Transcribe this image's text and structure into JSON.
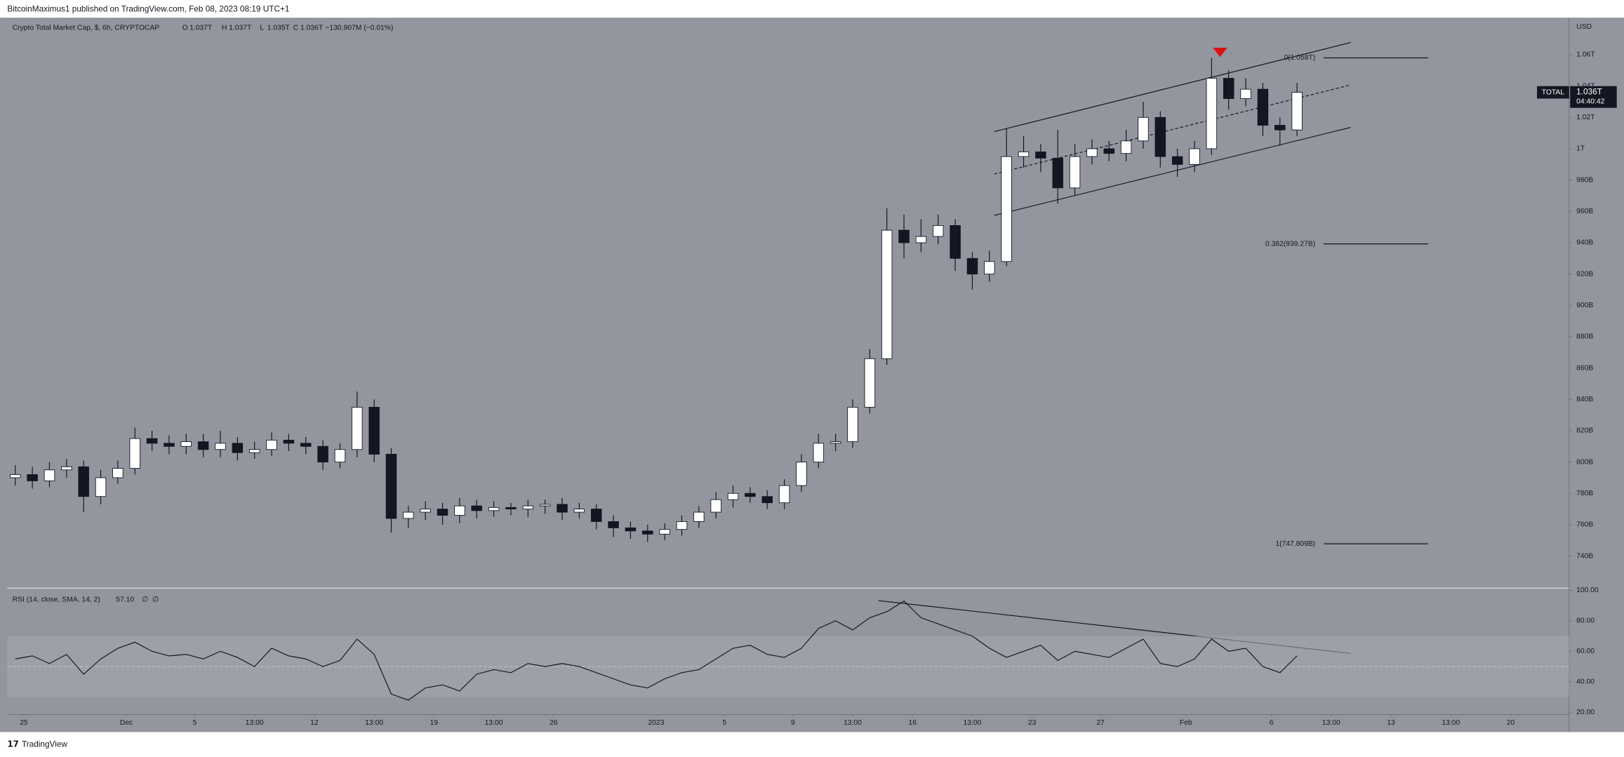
{
  "header": {
    "publisher": "BitcoinMaximus1 published on TradingView.com, Feb 08, 2023 08:19 UTC+1",
    "footer": "TradingView"
  },
  "chart_data": [
    {
      "type": "candlestick",
      "title": "Crypto Total Market Cap, $, 6h, CRYPTOCAP",
      "ohlc_letters": [
        "O",
        "H",
        "L",
        "C"
      ],
      "ohlc_values": [
        {
          "value": 1037,
          "label": "1.037T"
        },
        {
          "value": 1037,
          "label": "1.037T"
        },
        {
          "value": 1035,
          "label": "1.035T"
        },
        {
          "value": 1036,
          "label": "1.036T"
        }
      ],
      "change": "−130.907M (−0.01%)",
      "axis_unit": "USD",
      "symbol": "TOTAL",
      "last_price": {
        "value": 1036,
        "label": "1.036T"
      },
      "countdown": "04:40:42",
      "up_color": "#ffffff",
      "down_color": "#131722",
      "wick_color": "#131722",
      "x": [
        -0.5,
        0.5,
        1.5,
        2.5,
        3.5,
        4.5,
        5.5,
        6.5,
        7.5,
        8.5,
        9.5,
        10.5,
        11.5,
        12.5,
        13.5,
        14.5,
        15.5,
        16.5,
        17.5,
        18.5,
        19.5,
        20.5,
        21.5,
        22.5,
        23.5,
        24.5,
        25.5,
        26.5,
        27.5,
        28.5,
        29.5,
        30.5,
        31.5,
        32.5,
        33.5,
        34.5,
        35.5,
        36.5,
        37.5,
        38.5,
        39.5,
        40.5,
        41.5,
        42.5,
        43.5,
        44.5,
        45.5,
        46.5,
        47.5,
        48.5,
        49.5,
        50.5,
        51.5,
        52.5,
        53.5,
        54.5,
        55.5,
        56.5,
        57.5,
        58.5,
        59.5,
        60.5,
        61.5,
        62.5,
        63.5,
        64.5,
        65.5,
        66.5,
        67.5,
        68.5,
        69.5,
        70.5,
        71.5,
        72.5,
        73.5,
        74.5
      ],
      "open": [
        790,
        792,
        788,
        795,
        797,
        778,
        790,
        796,
        815,
        812,
        810,
        813,
        808,
        812,
        806,
        808,
        814,
        812,
        810,
        800,
        808,
        835,
        805,
        764,
        768,
        770,
        766,
        772,
        769,
        771,
        770,
        772,
        773,
        768,
        770,
        762,
        758,
        756,
        754,
        757,
        762,
        768,
        776,
        780,
        778,
        774,
        785,
        800,
        812,
        813,
        835,
        866,
        948,
        940,
        944,
        951,
        930,
        920,
        928,
        995,
        998,
        994,
        975,
        995,
        1000,
        997,
        1005,
        1020,
        995,
        990,
        1000,
        1045,
        1032,
        1038,
        1015,
        1012
      ],
      "high": [
        798,
        797,
        800,
        802,
        801,
        795,
        801,
        822,
        820,
        817,
        818,
        818,
        820,
        816,
        813,
        819,
        818,
        816,
        814,
        812,
        845,
        840,
        809,
        772,
        775,
        774,
        777,
        776,
        775,
        774,
        776,
        776,
        777,
        774,
        773,
        766,
        762,
        760,
        761,
        766,
        772,
        781,
        785,
        784,
        782,
        789,
        805,
        818,
        818,
        840,
        872,
        962,
        958,
        955,
        958,
        955,
        934,
        935,
        1013,
        1008,
        1003,
        1012,
        1003,
        1006,
        1005,
        1012,
        1030,
        1024,
        1000,
        1005,
        1058,
        1050,
        1045,
        1042,
        1020,
        1042
      ],
      "low": [
        785,
        783,
        784,
        790,
        768,
        773,
        786,
        792,
        807,
        805,
        805,
        803,
        803,
        801,
        802,
        804,
        807,
        805,
        795,
        796,
        803,
        800,
        755,
        758,
        763,
        760,
        761,
        764,
        765,
        766,
        765,
        767,
        763,
        764,
        757,
        752,
        751,
        749,
        750,
        753,
        758,
        764,
        771,
        774,
        770,
        770,
        781,
        796,
        807,
        809,
        831,
        862,
        930,
        934,
        939,
        922,
        910,
        915,
        925,
        988,
        985,
        965,
        970,
        990,
        992,
        992,
        1000,
        988,
        982,
        985,
        996,
        1025,
        1027,
        1008,
        1002,
        1008
      ],
      "close": [
        792,
        788,
        795,
        797,
        778,
        790,
        796,
        815,
        812,
        810,
        813,
        808,
        812,
        806,
        808,
        814,
        812,
        810,
        800,
        808,
        835,
        805,
        764,
        768,
        770,
        766,
        772,
        769,
        771,
        770,
        772,
        773,
        768,
        770,
        762,
        758,
        756,
        754,
        757,
        762,
        768,
        776,
        780,
        778,
        774,
        785,
        800,
        812,
        813,
        835,
        866,
        948,
        940,
        944,
        951,
        930,
        920,
        928,
        995,
        998,
        994,
        975,
        995,
        1000,
        997,
        1005,
        1020,
        995,
        990,
        1000,
        1045,
        1032,
        1038,
        1015,
        1012,
        1036
      ],
      "xlim": [
        -0.97,
        90.42
      ],
      "ylim": [
        719.5,
        1083
      ],
      "yticks": [
        {
          "value": 740,
          "label": "740B"
        },
        {
          "value": 760,
          "label": "760B"
        },
        {
          "value": 780,
          "label": "780B"
        },
        {
          "value": 800,
          "label": "800B"
        },
        {
          "value": 820,
          "label": "820B"
        },
        {
          "value": 840,
          "label": "840B"
        },
        {
          "value": 860,
          "label": "860B"
        },
        {
          "value": 880,
          "label": "880B"
        },
        {
          "value": 900,
          "label": "900B"
        },
        {
          "value": 920,
          "label": "920B"
        },
        {
          "value": 940,
          "label": "940B"
        },
        {
          "value": 960,
          "label": "960B"
        },
        {
          "value": 980,
          "label": "980B"
        },
        {
          "value": 1000,
          "label": "1T"
        },
        {
          "value": 1020,
          "label": "1.02T"
        },
        {
          "value": 1040,
          "label": "1.04T"
        },
        {
          "value": 1060,
          "label": "1.06T"
        }
      ],
      "xticks": [
        {
          "value": 0,
          "label": "25"
        },
        {
          "value": 6,
          "label": "Dec"
        },
        {
          "value": 10,
          "label": "5"
        },
        {
          "value": 13.5,
          "label": "13:00"
        },
        {
          "value": 17,
          "label": "12"
        },
        {
          "value": 20.5,
          "label": "13:00"
        },
        {
          "value": 24,
          "label": "19"
        },
        {
          "value": 27.5,
          "label": "13:00"
        },
        {
          "value": 31,
          "label": "26"
        },
        {
          "value": 37,
          "label": "2023"
        },
        {
          "value": 41,
          "label": "5"
        },
        {
          "value": 45,
          "label": "9"
        },
        {
          "value": 48.5,
          "label": "13:00"
        },
        {
          "value": 52,
          "label": "16"
        },
        {
          "value": 55.5,
          "label": "13:00"
        },
        {
          "value": 59,
          "label": "23"
        },
        {
          "value": 63,
          "label": "27"
        },
        {
          "value": 68,
          "label": "Feb"
        },
        {
          "value": 73,
          "label": "6"
        },
        {
          "value": 76.5,
          "label": "13:00"
        },
        {
          "value": 80,
          "label": "13"
        },
        {
          "value": 83.5,
          "label": "13:00"
        },
        {
          "value": 87,
          "label": "20"
        }
      ],
      "fib_levels": [
        {
          "value": 1058,
          "label": "0(1.058T)"
        },
        {
          "value": 939.27,
          "label": "0.382(939.27B)"
        },
        {
          "value": 747.809,
          "label": "1(747.809B)"
        }
      ]
    },
    {
      "type": "line",
      "title": "RSI (14, close, SMA, 14, 2)",
      "last_value": {
        "value": 57.1,
        "label": "57.10"
      },
      "flags": [
        "∅",
        "∅"
      ],
      "color": "#131722",
      "x": [
        -0.5,
        0.5,
        1.5,
        2.5,
        3.5,
        4.5,
        5.5,
        6.5,
        7.5,
        8.5,
        9.5,
        10.5,
        11.5,
        12.5,
        13.5,
        14.5,
        15.5,
        16.5,
        17.5,
        18.5,
        19.5,
        20.5,
        21.5,
        22.5,
        23.5,
        24.5,
        25.5,
        26.5,
        27.5,
        28.5,
        29.5,
        30.5,
        31.5,
        32.5,
        33.5,
        34.5,
        35.5,
        36.5,
        37.5,
        38.5,
        39.5,
        40.5,
        41.5,
        42.5,
        43.5,
        44.5,
        45.5,
        46.5,
        47.5,
        48.5,
        49.5,
        50.5,
        51.5,
        52.5,
        53.5,
        54.5,
        55.5,
        56.5,
        57.5,
        58.5,
        59.5,
        60.5,
        61.5,
        62.5,
        63.5,
        64.5,
        65.5,
        66.5,
        67.5,
        68.5,
        69.5,
        70.5,
        71.5,
        72.5,
        73.5,
        74.5
      ],
      "values": [
        55,
        57,
        52,
        58,
        45,
        55,
        62,
        66,
        60,
        57,
        58,
        55,
        60,
        56,
        50,
        62,
        57,
        55,
        50,
        54,
        68,
        58,
        32,
        28,
        36,
        38,
        34,
        45,
        48,
        46,
        52,
        50,
        52,
        50,
        46,
        42,
        38,
        36,
        42,
        46,
        48,
        55,
        62,
        64,
        58,
        56,
        62,
        75,
        80,
        74,
        82,
        86,
        93,
        82,
        78,
        74,
        70,
        62,
        56,
        60,
        64,
        54,
        60,
        58,
        56,
        62,
        68,
        52,
        50,
        55,
        68,
        60,
        62,
        50,
        46,
        57
      ],
      "ylim": [
        18.6,
        101.4
      ],
      "yticks": [
        {
          "value": 100,
          "label": "100.00"
        },
        {
          "value": 80,
          "label": "80.00"
        },
        {
          "value": 60,
          "label": "60.00"
        },
        {
          "value": 40,
          "label": "40.00"
        },
        {
          "value": 20,
          "label": "20.00"
        }
      ],
      "band": [
        30,
        70
      ],
      "midline": 50
    }
  ]
}
